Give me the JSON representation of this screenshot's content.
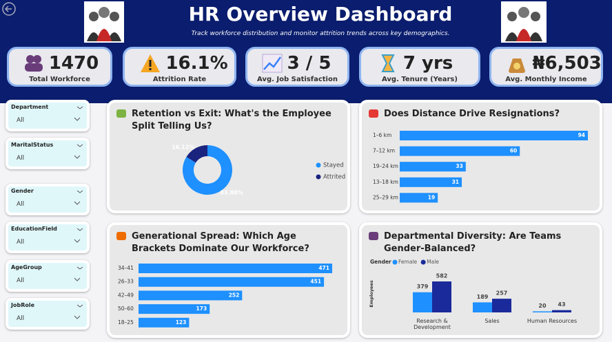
{
  "header": {
    "title": "HR Overview Dashboard",
    "subtitle": "Track workforce distribution and monitor attrition trends across key demographics."
  },
  "kpis": [
    {
      "value": "1470",
      "label": "Total Workforce"
    },
    {
      "value": "16.1%",
      "label": "Attrition Rate"
    },
    {
      "value": "3 / 5",
      "label": "Avg. Job Satisfaction"
    },
    {
      "value": "7 yrs",
      "label": "Avg. Tenure (Years)"
    },
    {
      "value": "₦6,503",
      "label": "Avg. Monthly Income"
    }
  ],
  "filters": [
    {
      "label": "Department",
      "value": "All"
    },
    {
      "label": "MaritalStatus",
      "value": "All"
    },
    {
      "label": "Gender",
      "value": "All"
    },
    {
      "label": "EducationField",
      "value": "All"
    },
    {
      "label": "AgeGroup",
      "value": "All"
    },
    {
      "label": "JobRole",
      "value": "All"
    }
  ],
  "chart_data": [
    {
      "type": "pie",
      "title": "Retention vs Exit: What's the Employee Split Telling Us?",
      "categories": [
        "Stayed",
        "Attrited"
      ],
      "values": [
        83.88,
        16.12
      ],
      "value_labels": [
        "83.88%",
        "16.12%"
      ],
      "colors": [
        "#1e90ff",
        "#1a237e"
      ]
    },
    {
      "type": "bar",
      "title": "Does Distance Drive Resignations?",
      "categories": [
        "1–6 km",
        "7–12 km",
        "19–24 km",
        "13–18 km",
        "25–29 km"
      ],
      "values": [
        94,
        60,
        33,
        31,
        19
      ],
      "color": "#1e90ff"
    },
    {
      "type": "bar",
      "title": "Generational Spread: Which Age Brackets Dominate Our Workforce?",
      "categories": [
        "34–41",
        "26–33",
        "42–49",
        "50–60",
        "18–25"
      ],
      "values": [
        471,
        451,
        252,
        173,
        123
      ],
      "color": "#1e90ff"
    },
    {
      "type": "bar",
      "title": "Departmental Diversity: Are Teams Gender-Balanced?",
      "legend_title": "Gender",
      "y_label": "Employees",
      "categories": [
        "Research & Development",
        "Sales",
        "Human Resources"
      ],
      "series": [
        {
          "name": "Female",
          "color": "#1e90ff",
          "values": [
            379,
            189,
            20
          ]
        },
        {
          "name": "Male",
          "color": "#1a2a9a",
          "values": [
            582,
            257,
            43
          ]
        }
      ]
    }
  ]
}
